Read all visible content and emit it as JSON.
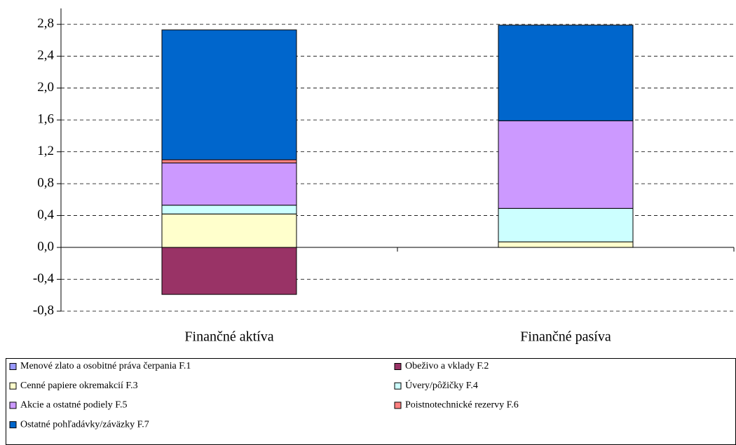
{
  "chart_data": {
    "type": "stacked_bar",
    "categories": [
      "Finančné aktíva",
      "Finančné pasíva"
    ],
    "series": [
      {
        "name": "Menové zlato a osobitné práva čerpania F.1",
        "color": "#9999ff",
        "values": [
          0,
          0
        ]
      },
      {
        "name": "Obeživo a vklady F.2",
        "color": "#993366",
        "values": [
          -0.59,
          0
        ]
      },
      {
        "name": "Cenné papiere okremakcií F.3",
        "color": "#ffffcc",
        "values": [
          0.42,
          0.07
        ]
      },
      {
        "name": "Úvery/pôžičky F.4",
        "color": "#ccffff",
        "values": [
          0.11,
          0.42
        ]
      },
      {
        "name": "Akcie a ostatné podiely F.5",
        "color": "#cc99ff",
        "values": [
          0.53,
          1.1
        ]
      },
      {
        "name": "Poistnotechnické rezervy F.6",
        "color": "#ff8080",
        "values": [
          0.04,
          0
        ]
      },
      {
        "name": "Ostatné pohľadávky/záväzky F.7",
        "color": "#0066cc",
        "values": [
          1.63,
          1.2
        ]
      }
    ],
    "ylim": [
      -0.8,
      3.0
    ],
    "yticks": [
      {
        "value": -0.8,
        "label": "-0,8"
      },
      {
        "value": -0.4,
        "label": "-0,4"
      },
      {
        "value": 0,
        "label": "0,0"
      },
      {
        "value": 0.4,
        "label": "0,4"
      },
      {
        "value": 0.8,
        "label": "0,8"
      },
      {
        "value": 1.2,
        "label": "1,2"
      },
      {
        "value": 1.6,
        "label": "1,6"
      },
      {
        "value": 2.0,
        "label": "2,0"
      },
      {
        "value": 2.4,
        "label": "2,4"
      },
      {
        "value": 2.8,
        "label": "2,8"
      }
    ],
    "grid": true
  }
}
